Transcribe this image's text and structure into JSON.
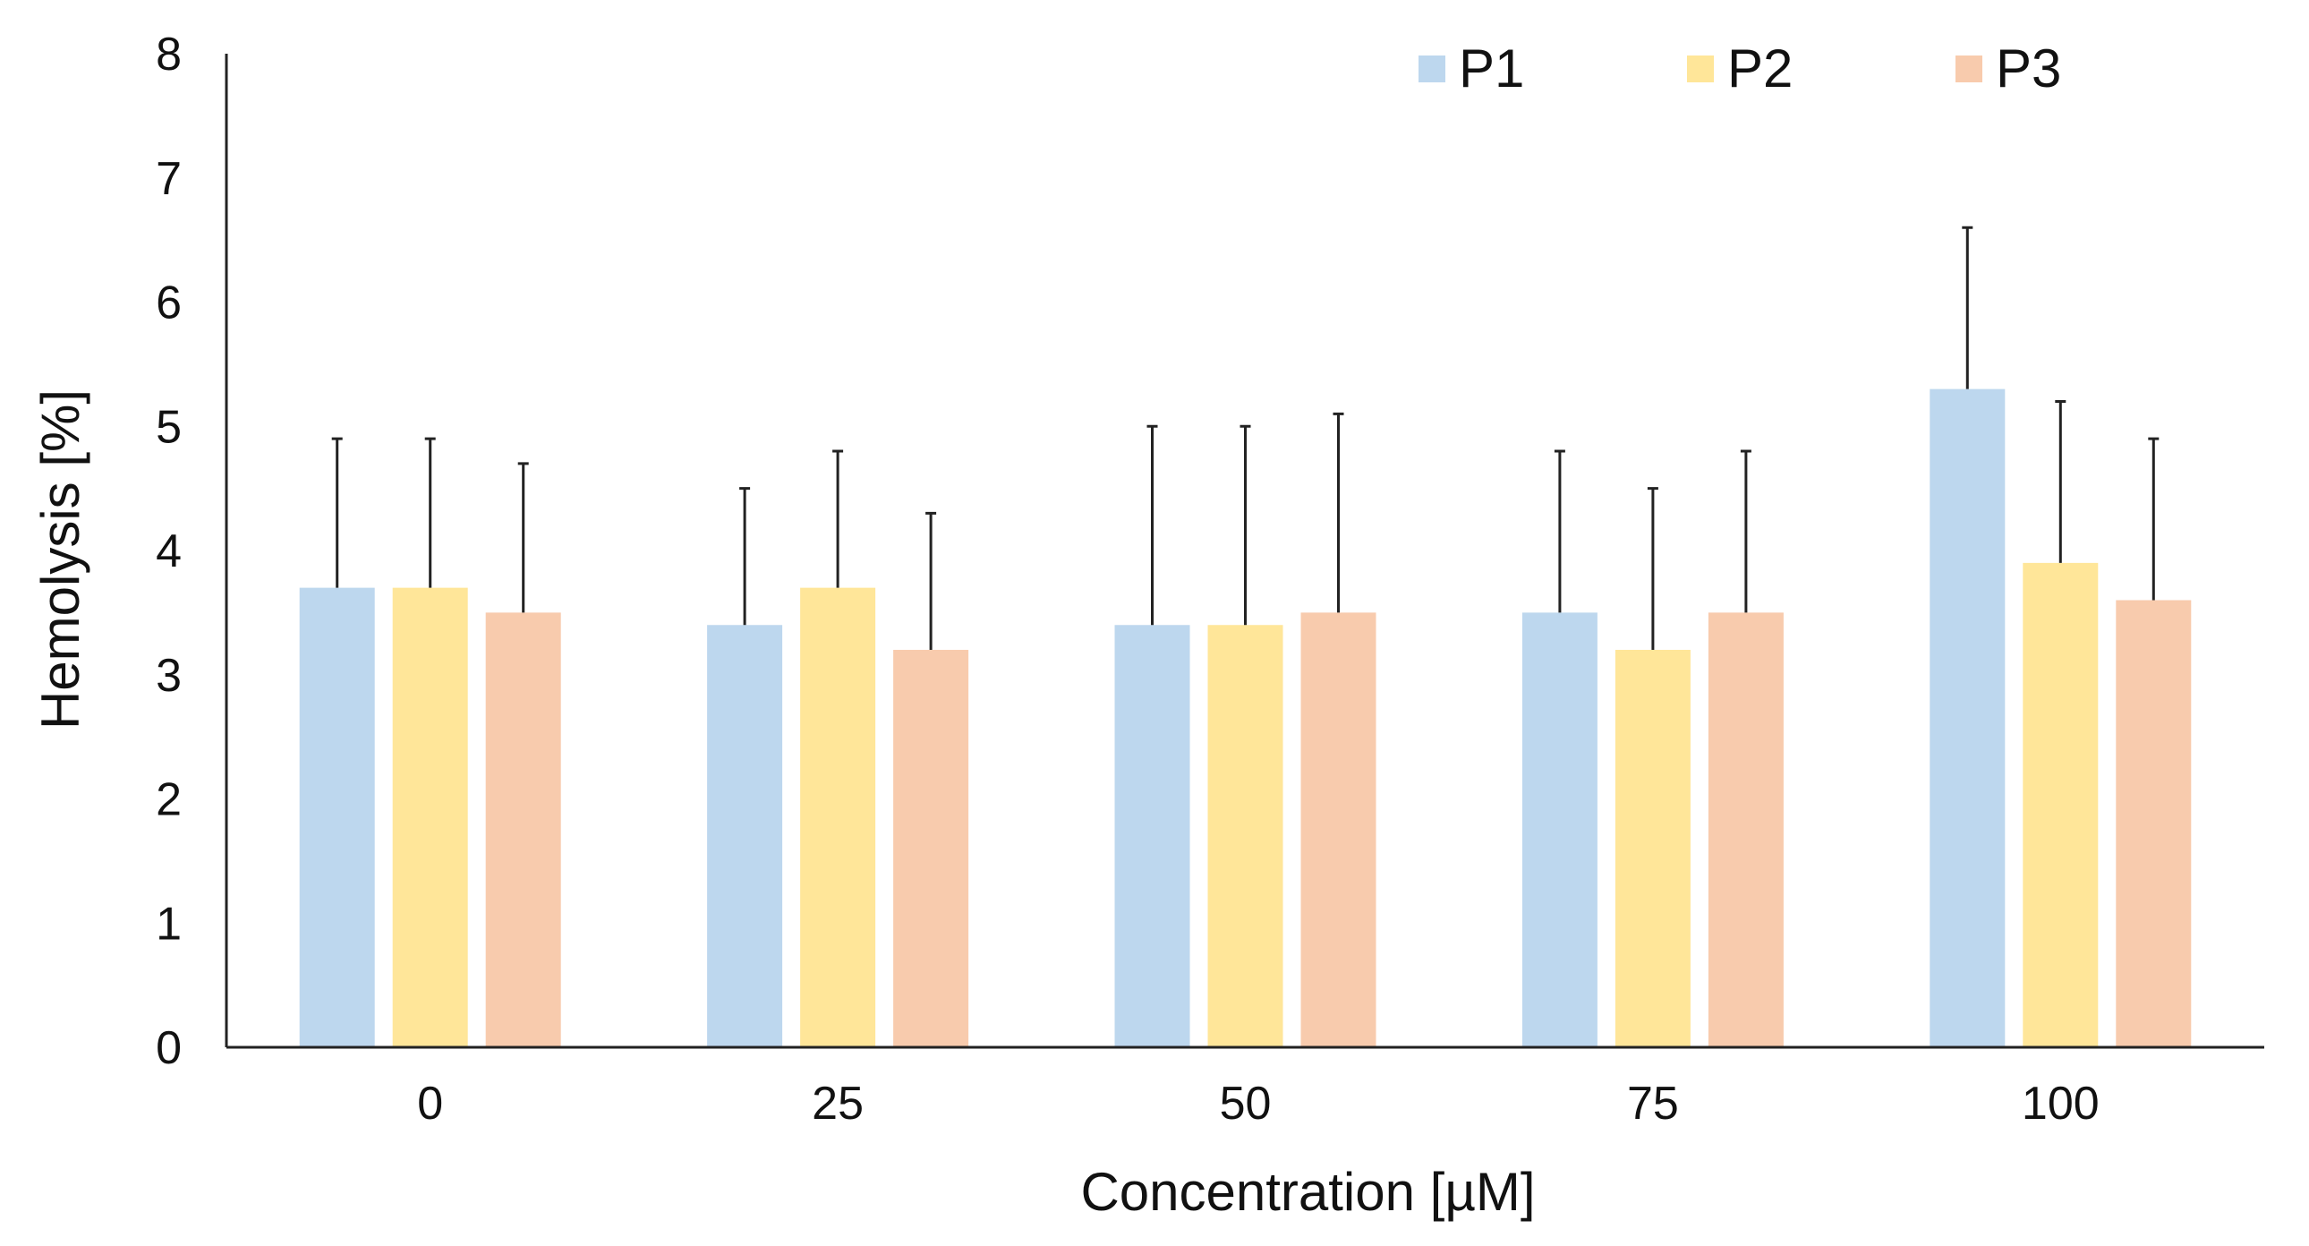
{
  "chart_data": {
    "type": "bar",
    "title": "",
    "xlabel": "Concentration [µM]",
    "ylabel": "Hemolysis [%]",
    "categories": [
      "0",
      "25",
      "50",
      "75",
      "100"
    ],
    "ylim": [
      0,
      8
    ],
    "yticks": [
      "0",
      "1",
      "2",
      "3",
      "4",
      "5",
      "6",
      "7",
      "8"
    ],
    "grid": false,
    "legend_position": "top-right",
    "series": [
      {
        "name": "P1",
        "color": "#bdd7ee",
        "values": [
          3.7,
          3.4,
          3.4,
          3.5,
          5.3
        ],
        "error": [
          1.2,
          1.1,
          1.6,
          1.3,
          1.3
        ]
      },
      {
        "name": "P2",
        "color": "#ffe699",
        "values": [
          3.7,
          3.7,
          3.4,
          3.2,
          3.9
        ],
        "error": [
          1.2,
          1.1,
          1.6,
          1.3,
          1.3
        ]
      },
      {
        "name": "P3",
        "color": "#f8cbad",
        "values": [
          3.5,
          3.2,
          3.5,
          3.5,
          3.6
        ],
        "error": [
          1.2,
          1.1,
          1.6,
          1.3,
          1.3
        ]
      }
    ]
  }
}
